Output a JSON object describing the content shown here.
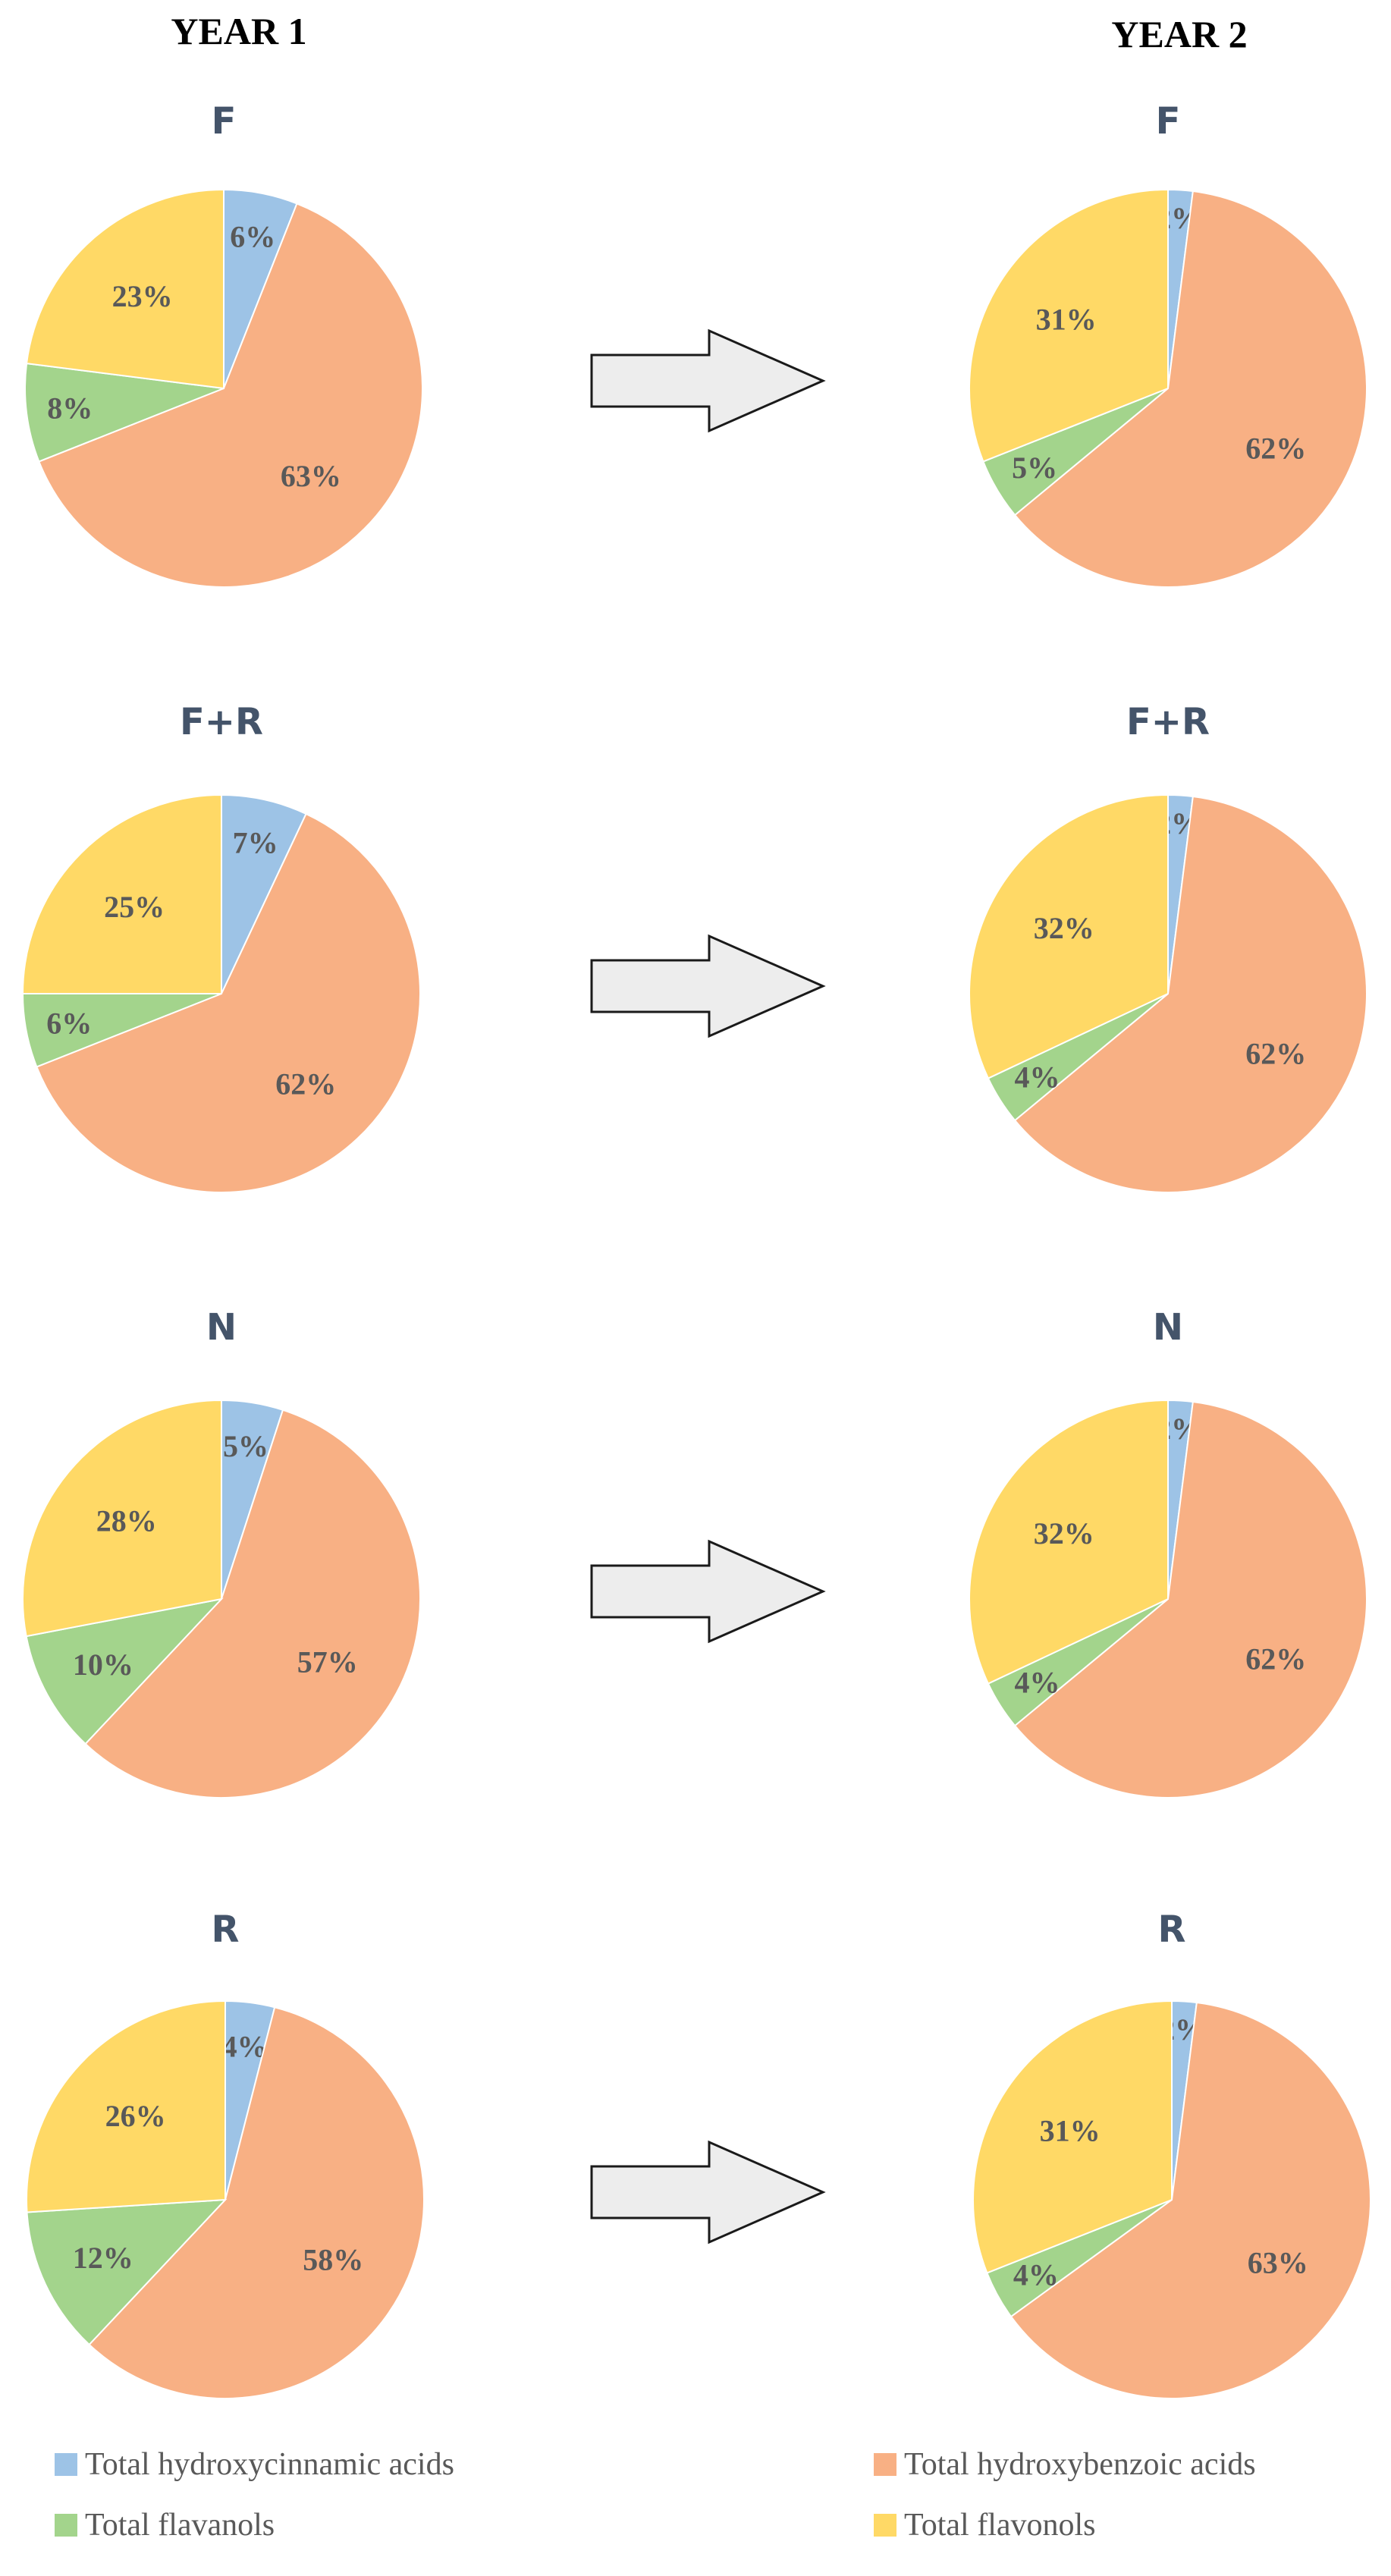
{
  "page": {
    "year_titles": [
      "YEAR 1",
      "YEAR 2"
    ]
  },
  "legend": [
    {
      "label": "Total hydroxycinnamic acids",
      "color": "#9dc3e6"
    },
    {
      "label": "Total hydroxybenzoic acids",
      "color": "#f8b084"
    },
    {
      "label": "Total flavanols",
      "color": "#a3d48c"
    },
    {
      "label": "Total flavonols",
      "color": "#ffd966"
    }
  ],
  "arrow": {
    "fill": "#ededed",
    "stroke": "#1a1a1a"
  },
  "chart_data": [
    {
      "type": "pie",
      "title": "F",
      "year": "YEAR 1",
      "categories": [
        "Total hydroxycinnamic acids",
        "Total hydroxybenzoic acids",
        "Total flavanols",
        "Total flavonols"
      ],
      "values": [
        6,
        63,
        8,
        23
      ],
      "labels": [
        "6%",
        "63%",
        "8%",
        "23%"
      ]
    },
    {
      "type": "pie",
      "title": "F",
      "year": "YEAR 2",
      "categories": [
        "Total hydroxycinnamic acids",
        "Total hydroxybenzoic acids",
        "Total flavanols",
        "Total flavonols"
      ],
      "values": [
        2,
        62,
        5,
        31
      ],
      "labels": [
        "2%",
        "62%",
        "5%",
        "31%"
      ]
    },
    {
      "type": "pie",
      "title": "F+R",
      "year": "YEAR 1",
      "categories": [
        "Total hydroxycinnamic acids",
        "Total hydroxybenzoic acids",
        "Total flavanols",
        "Total flavonols"
      ],
      "values": [
        7,
        62,
        6,
        25
      ],
      "labels": [
        "7%",
        "62%",
        "6%",
        "25%"
      ]
    },
    {
      "type": "pie",
      "title": "F+R",
      "year": "YEAR 2",
      "categories": [
        "Total hydroxycinnamic acids",
        "Total hydroxybenzoic acids",
        "Total flavanols",
        "Total flavonols"
      ],
      "values": [
        2,
        62,
        4,
        32
      ],
      "labels": [
        "2%",
        "62%",
        "4%",
        "32%"
      ]
    },
    {
      "type": "pie",
      "title": "N",
      "year": "YEAR 1",
      "categories": [
        "Total hydroxycinnamic acids",
        "Total hydroxybenzoic acids",
        "Total flavanols",
        "Total flavonols"
      ],
      "values": [
        5,
        57,
        10,
        28
      ],
      "labels": [
        "5%",
        "57%",
        "10%",
        "28%"
      ]
    },
    {
      "type": "pie",
      "title": "N",
      "year": "YEAR 2",
      "categories": [
        "Total hydroxycinnamic acids",
        "Total hydroxybenzoic acids",
        "Total flavanols",
        "Total flavonols"
      ],
      "values": [
        2,
        62,
        4,
        32
      ],
      "labels": [
        "2%",
        "62%",
        "4%",
        "32%"
      ]
    },
    {
      "type": "pie",
      "title": "R",
      "year": "YEAR 1",
      "categories": [
        "Total hydroxycinnamic acids",
        "Total hydroxybenzoic acids",
        "Total flavanols",
        "Total flavonols"
      ],
      "values": [
        4,
        58,
        12,
        26
      ],
      "labels": [
        "4%",
        "58%",
        "12%",
        "26%"
      ]
    },
    {
      "type": "pie",
      "title": "R",
      "year": "YEAR 2",
      "categories": [
        "Total hydroxycinnamic acids",
        "Total hydroxybenzoic acids",
        "Total flavanols",
        "Total flavonols"
      ],
      "values": [
        2,
        63,
        4,
        31
      ],
      "labels": [
        "2%",
        "63%",
        "4%",
        "31%"
      ]
    }
  ]
}
